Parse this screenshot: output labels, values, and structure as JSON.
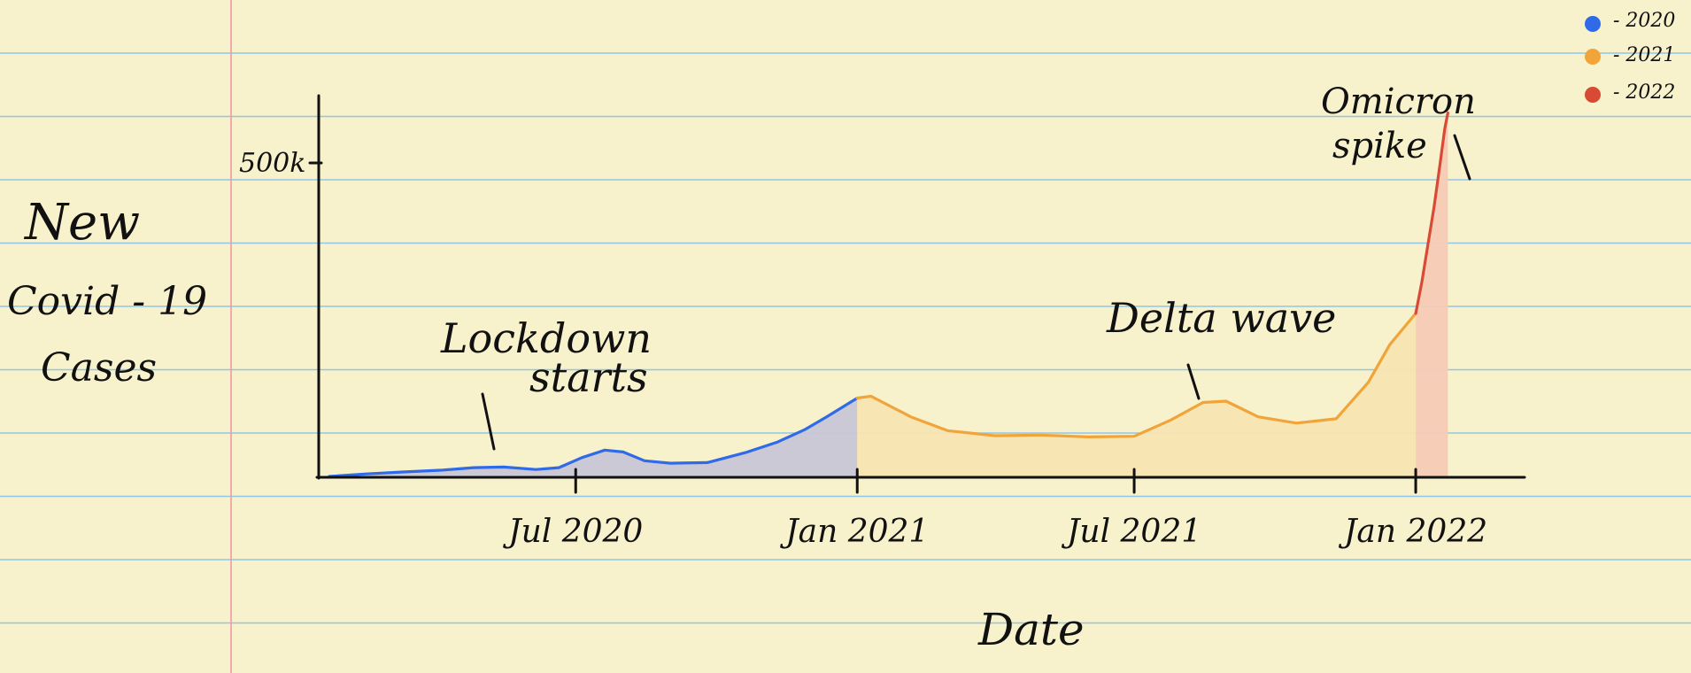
{
  "chart_data": {
    "type": "area",
    "title": "New Covid-19 Cases",
    "title_lines": [
      "New",
      "Covid - 19",
      "Cases"
    ],
    "xlabel": "Date",
    "ylabel": "",
    "x_ticks": [
      "Jul 2020",
      "Jan 2021",
      "Jul 2021",
      "Jan 2022"
    ],
    "y_ticks": [
      "500k"
    ],
    "ylim": [
      0,
      600000
    ],
    "grid": false,
    "legend_position": "top-right",
    "series": [
      {
        "name": "2020",
        "color": "#2f6ae8",
        "fill": "#c9c6d6",
        "points": [
          [
            "2020-01-22",
            0
          ],
          [
            "2020-02-15",
            4000
          ],
          [
            "2020-03-10",
            7000
          ],
          [
            "2020-04-05",
            10000
          ],
          [
            "2020-04-25",
            14000
          ],
          [
            "2020-05-15",
            15000
          ],
          [
            "2020-06-05",
            11000
          ],
          [
            "2020-06-20",
            14000
          ],
          [
            "2020-07-05",
            30000
          ],
          [
            "2020-07-20",
            42000
          ],
          [
            "2020-08-01",
            39000
          ],
          [
            "2020-08-15",
            25000
          ],
          [
            "2020-09-01",
            21000
          ],
          [
            "2020-09-25",
            22000
          ],
          [
            "2020-10-20",
            38000
          ],
          [
            "2020-11-10",
            55000
          ],
          [
            "2020-11-28",
            75000
          ],
          [
            "2020-12-12",
            95000
          ],
          [
            "2020-12-22",
            110000
          ],
          [
            "2021-01-01",
            125000
          ]
        ]
      },
      {
        "name": "2021",
        "color": "#f0a43a",
        "fill": "#f8e4b2",
        "points": [
          [
            "2021-01-01",
            125000
          ],
          [
            "2021-01-10",
            128000
          ],
          [
            "2021-02-05",
            95000
          ],
          [
            "2021-03-01",
            73000
          ],
          [
            "2021-04-01",
            65000
          ],
          [
            "2021-05-01",
            66000
          ],
          [
            "2021-06-01",
            63000
          ],
          [
            "2021-07-01",
            64000
          ],
          [
            "2021-07-25",
            90000
          ],
          [
            "2021-08-15",
            118000
          ],
          [
            "2021-08-30",
            120000
          ],
          [
            "2021-09-20",
            95000
          ],
          [
            "2021-10-15",
            85000
          ],
          [
            "2021-11-10",
            92000
          ],
          [
            "2021-12-01",
            150000
          ],
          [
            "2021-12-15",
            210000
          ],
          [
            "2022-01-01",
            260000
          ]
        ]
      },
      {
        "name": "2022",
        "color": "#d84a33",
        "fill": "#f6cbb6",
        "points": [
          [
            "2022-01-01",
            260000
          ],
          [
            "2022-01-05",
            310000
          ],
          [
            "2022-01-09",
            370000
          ],
          [
            "2022-01-13",
            430000
          ],
          [
            "2022-01-17",
            500000
          ],
          [
            "2022-01-20",
            555000
          ],
          [
            "2022-01-22",
            580000
          ]
        ]
      }
    ],
    "annotations": [
      {
        "lines": [
          "Lockdown",
          "starts"
        ],
        "date": "2020-05-20"
      },
      {
        "lines": [
          "Delta wave"
        ],
        "date": "2021-07-30"
      },
      {
        "lines": [
          "Omicron",
          "spike"
        ],
        "date": "2022-01-10"
      }
    ]
  },
  "legend": [
    {
      "label": "- 2020",
      "color": "#2f6ae8"
    },
    {
      "label": "- 2021",
      "color": "#f0a43a"
    },
    {
      "label": "- 2022",
      "color": "#d84a33"
    }
  ],
  "paper": {
    "background": "#f8f2cc",
    "rule_color": "#8fc6e6",
    "margin_color": "#ef9aa4"
  }
}
